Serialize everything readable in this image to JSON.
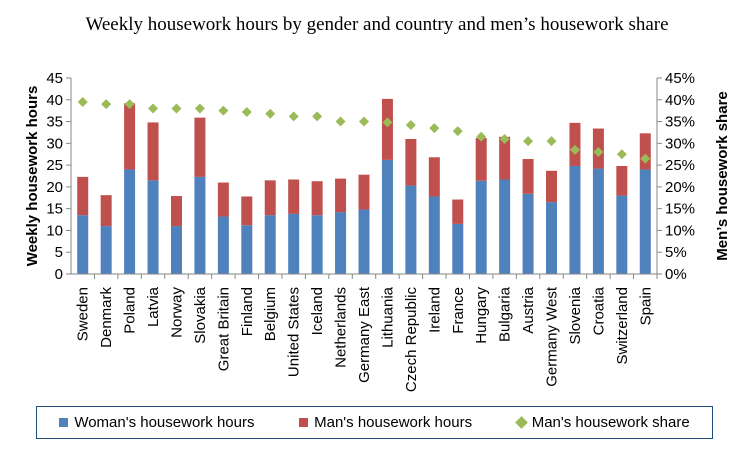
{
  "title": "Weekly housework hours by gender and country and men’s housework share",
  "colors": {
    "woman": "#4f81bd",
    "man": "#c0504d",
    "share": "#9bbb59"
  },
  "chart_data": {
    "type": "bar",
    "stacked": true,
    "title": "Weekly housework hours by gender and country and men’s housework share",
    "ylabel": "Weekly housework hours",
    "y2label": "Men’s housework share",
    "ylim": [
      0,
      45
    ],
    "yticks": [
      "0",
      "5",
      "10",
      "15",
      "20",
      "25",
      "30",
      "35",
      "40",
      "45"
    ],
    "y2lim": [
      0,
      0.45
    ],
    "y2ticks": [
      "0%",
      "5%",
      "10%",
      "15%",
      "20%",
      "25%",
      "30%",
      "35%",
      "40%",
      "45%"
    ],
    "grid": false,
    "legend_position": "bottom",
    "categories": [
      "Sweden",
      "Denmark",
      "Poland",
      "Latvia",
      "Norway",
      "Slovakia",
      "Great Britain",
      "Finland",
      "Belgium",
      "United States",
      "Iceland",
      "Netherlands",
      "Germany East",
      "Lithuania",
      "Czech Republic",
      "Ireland",
      "France",
      "Hungary",
      "Bulgaria",
      "Austria",
      "Germany West",
      "Slovenia",
      "Croatia",
      "Switzerland",
      "Spain"
    ],
    "series": [
      {
        "name": "Woman's housework hours",
        "type": "bar",
        "values": [
          13.5,
          11,
          24,
          21.5,
          11,
          22.3,
          13.2,
          11.2,
          13.5,
          13.8,
          13.5,
          14.2,
          14.8,
          26.2,
          20.3,
          17.8,
          11.5,
          21.4,
          21.7,
          18.4,
          16.5,
          24.8,
          24.2,
          18,
          24
        ]
      },
      {
        "name": "Man's housework hours",
        "type": "bar",
        "values": [
          8.8,
          7.1,
          15.2,
          13.3,
          6.9,
          13.6,
          7.8,
          6.6,
          8,
          7.9,
          7.8,
          7.7,
          8,
          14,
          10.7,
          9,
          5.6,
          9.8,
          9.8,
          8,
          7.2,
          9.9,
          9.2,
          6.8,
          8.3
        ]
      },
      {
        "name": "Man's housework share",
        "type": "scatter",
        "axis": "right",
        "values": [
          0.395,
          0.39,
          0.39,
          0.38,
          0.38,
          0.38,
          0.375,
          0.372,
          0.368,
          0.362,
          0.362,
          0.35,
          0.35,
          0.348,
          0.342,
          0.335,
          0.328,
          0.315,
          0.31,
          0.305,
          0.305,
          0.285,
          0.28,
          0.275,
          0.265
        ]
      }
    ]
  }
}
